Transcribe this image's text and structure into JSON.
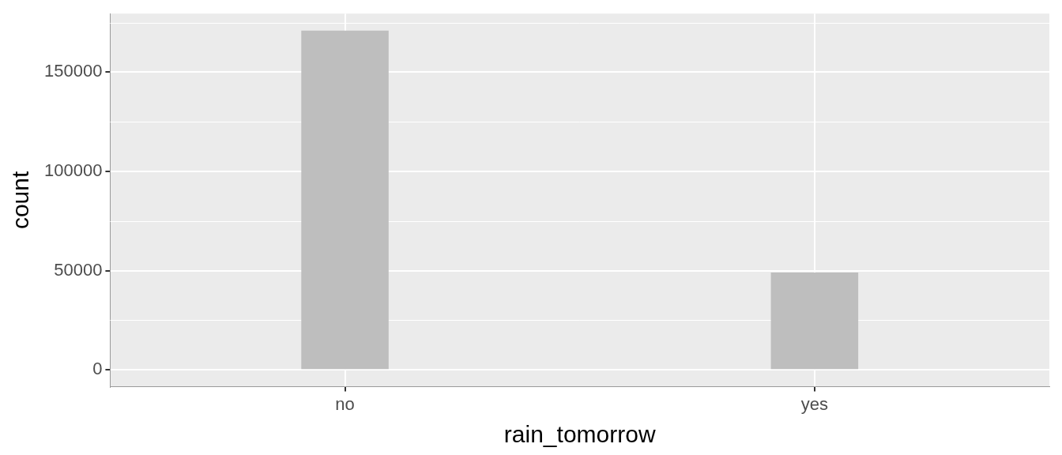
{
  "chart_data": {
    "type": "bar",
    "categories": [
      "no",
      "yes"
    ],
    "values": [
      171000,
      49000
    ],
    "color": "#bebebe",
    "xlabel": "rain_tomorrow",
    "ylabel": "count",
    "ylim": [
      -8550,
      179550
    ],
    "yticks": [
      0,
      50000,
      100000,
      150000
    ],
    "grid": true
  }
}
